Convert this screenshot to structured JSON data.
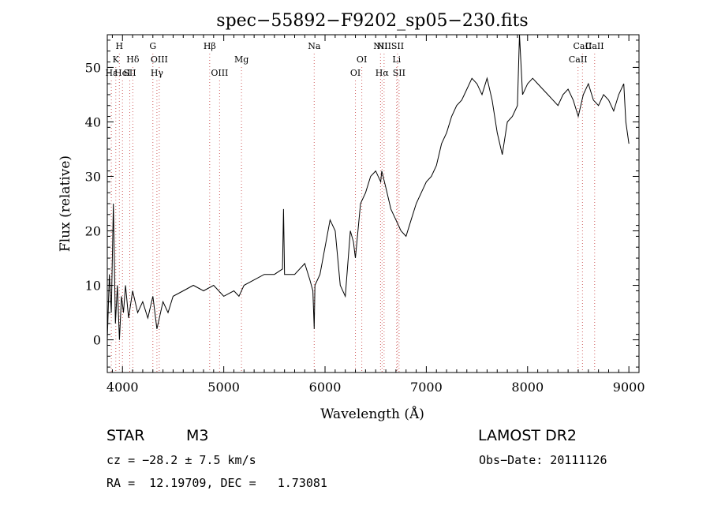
{
  "chart_data": {
    "type": "line",
    "title": "spec−55892−F9202_sp05−230.fits",
    "xlabel": "Wavelength (Å)",
    "ylabel": "Flux (relative)",
    "xlim": [
      3850,
      9100
    ],
    "ylim": [
      -6,
      56
    ],
    "xticks": [
      4000,
      5000,
      6000,
      7000,
      8000,
      9000
    ],
    "yticks": [
      0,
      10,
      20,
      30,
      40,
      50
    ],
    "grid": false,
    "series": [
      {
        "x": [
          3850,
          3870,
          3890,
          3910,
          3930,
          3950,
          3970,
          3990,
          4010,
          4030,
          4060,
          4100,
          4150,
          4200,
          4250,
          4300,
          4340,
          4400,
          4450,
          4500,
          4600,
          4700,
          4800,
          4900,
          5000,
          5100,
          5150,
          5200,
          5300,
          5400,
          5500,
          5580,
          5590,
          5600,
          5700,
          5800,
          5850,
          5880,
          5893,
          5900,
          5950,
          6000,
          6050,
          6100,
          6150,
          6200,
          6250,
          6280,
          6300,
          6350,
          6400,
          6450,
          6500,
          6550,
          6560,
          6600,
          6650,
          6700,
          6750,
          6800,
          6850,
          6900,
          6950,
          7000,
          7050,
          7100,
          7150,
          7200,
          7250,
          7300,
          7350,
          7400,
          7450,
          7500,
          7550,
          7600,
          7650,
          7700,
          7750,
          7800,
          7850,
          7900,
          7920,
          7950,
          8000,
          8050,
          8100,
          8150,
          8200,
          8250,
          8300,
          8350,
          8400,
          8450,
          8500,
          8550,
          8600,
          8650,
          8700,
          8750,
          8800,
          8850,
          8900,
          8950,
          8970,
          9000
        ],
        "y": [
          0,
          12,
          5,
          25,
          3,
          10,
          0,
          8,
          5,
          10,
          4,
          9,
          5,
          7,
          4,
          8,
          2,
          7,
          5,
          8,
          9,
          10,
          9,
          10,
          8,
          9,
          8,
          10,
          11,
          12,
          12,
          13,
          24,
          12,
          12,
          14,
          11,
          9,
          2,
          10,
          12,
          17,
          22,
          20,
          10,
          8,
          20,
          18,
          15,
          25,
          27,
          30,
          31,
          29,
          31,
          28,
          24,
          22,
          20,
          19,
          22,
          25,
          27,
          29,
          30,
          32,
          36,
          38,
          41,
          43,
          44,
          46,
          48,
          47,
          45,
          48,
          44,
          38,
          34,
          40,
          41,
          43,
          56,
          45,
          47,
          48,
          47,
          46,
          45,
          44,
          43,
          45,
          46,
          44,
          41,
          45,
          47,
          44,
          43,
          45,
          44,
          42,
          45,
          47,
          40,
          36
        ]
      }
    ],
    "lines": [
      {
        "x": 3890,
        "label": "Hε",
        "row": 3
      },
      {
        "x": 3934,
        "label": "K",
        "row": 2
      },
      {
        "x": 3969,
        "label": "H",
        "row": 1
      },
      {
        "x": 4000,
        "label": "HeI",
        "row": 3
      },
      {
        "x": 4072,
        "label": "SII",
        "row": 3
      },
      {
        "x": 4102,
        "label": "Hδ",
        "row": 2
      },
      {
        "x": 4300,
        "label": "G",
        "row": 1
      },
      {
        "x": 4340,
        "label": "Hγ",
        "row": 3
      },
      {
        "x": 4363,
        "label": "OIII",
        "row": 2
      },
      {
        "x": 4861,
        "label": "Hβ",
        "row": 1
      },
      {
        "x": 4959,
        "label": "OIII",
        "row": 3
      },
      {
        "x": 5175,
        "label": "Mg",
        "row": 2
      },
      {
        "x": 5893,
        "label": "Na",
        "row": 1
      },
      {
        "x": 6300,
        "label": "OI",
        "row": 3
      },
      {
        "x": 6363,
        "label": "OI",
        "row": 2
      },
      {
        "x": 6548,
        "label": "NII",
        "row": 1
      },
      {
        "x": 6563,
        "label": "Hα",
        "row": 3
      },
      {
        "x": 6583,
        "label": "NII",
        "row": 1
      },
      {
        "x": 6707,
        "label": "Li",
        "row": 2
      },
      {
        "x": 6716,
        "label": "SII",
        "row": 1
      },
      {
        "x": 6731,
        "label": "SII",
        "row": 3
      },
      {
        "x": 8498,
        "label": "CaII",
        "row": 2
      },
      {
        "x": 8542,
        "label": "CaII",
        "row": 1
      },
      {
        "x": 8662,
        "label": "CaII",
        "row": 1
      }
    ]
  },
  "info": {
    "object_class": "STAR",
    "subclass": "M3",
    "survey": "LAMOST DR2",
    "cz": "cz = −28.2 ± 7.5 km/s",
    "obs_date": "Obs−Date: 20111126",
    "coords": "RA =  12.19709, DEC =   1.73081"
  }
}
